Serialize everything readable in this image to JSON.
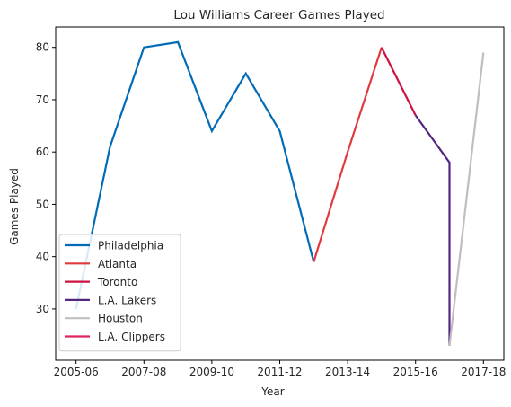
{
  "chart_data": {
    "type": "line",
    "title": "Lou Williams Career Games Played",
    "xlabel": "Year",
    "ylabel": "Games Played",
    "x_ticks": [
      "2005-06",
      "2007-08",
      "2009-10",
      "2011-12",
      "2013-14",
      "2015-16",
      "2017-18"
    ],
    "y_ticks": [
      "30",
      "40",
      "50",
      "60",
      "70",
      "80"
    ],
    "ylim": [
      20.2,
      83.9
    ],
    "xlim": [
      -0.6,
      12.6
    ],
    "legend_position": "lower-left",
    "series": [
      {
        "name": "Philadelphia",
        "color": "#006bb6",
        "x": [
          0,
          1,
          2,
          3,
          4,
          5,
          6,
          7
        ],
        "y": [
          30,
          61,
          80,
          81,
          64,
          75,
          64,
          39
        ]
      },
      {
        "name": "Atlanta",
        "color": "#e03a3e",
        "x": [
          7,
          8,
          9
        ],
        "y": [
          39,
          60,
          80
        ]
      },
      {
        "name": "Toronto",
        "color": "#ce1141",
        "x": [
          9,
          10
        ],
        "y": [
          80,
          67
        ]
      },
      {
        "name": "L.A. Lakers",
        "color": "#552583",
        "x": [
          10,
          11,
          11
        ],
        "y": [
          67,
          58,
          23
        ]
      },
      {
        "name": "Houston",
        "color": "#bfbfbf",
        "x": [
          11,
          12
        ],
        "y": [
          23,
          79
        ]
      },
      {
        "name": "L.A. Clippers",
        "color": "#e0245e",
        "x": [],
        "y": []
      }
    ]
  }
}
